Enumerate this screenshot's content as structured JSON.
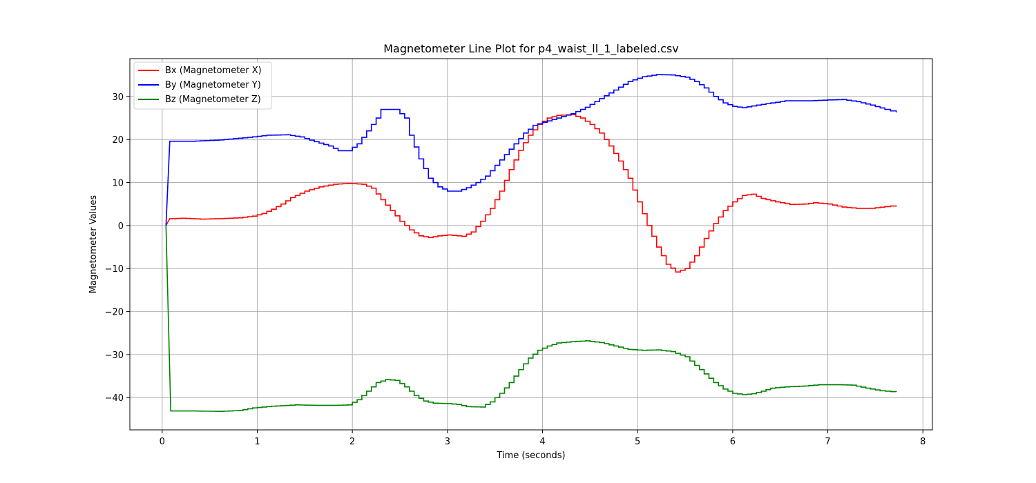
{
  "chart_data": {
    "type": "line",
    "title": "Magnetometer Line Plot for p4_waist_ll_1_labeled.csv",
    "xlabel": "Time (seconds)",
    "ylabel": "Magnetometer Values",
    "xlim": [
      -0.34,
      8.1
    ],
    "ylim": [
      -47.5,
      38.8
    ],
    "xticks": [
      0,
      1,
      2,
      3,
      4,
      5,
      6,
      7,
      8
    ],
    "xtick_labels": [
      "0",
      "1",
      "2",
      "3",
      "4",
      "5",
      "6",
      "7",
      "8"
    ],
    "yticks": [
      30,
      20,
      10,
      0,
      -10,
      -20,
      -30,
      -40
    ],
    "ytick_labels": [
      "30",
      "20",
      "10",
      "0",
      "−10",
      "−20",
      "−30",
      "−40"
    ],
    "grid": true,
    "legend_position": "top-left",
    "series": [
      {
        "name": "Bx (Magnetometer X)",
        "color": "#ff0000",
        "step": 0.05,
        "points": [
          [
            0.04,
            0
          ],
          [
            0.08,
            1.6
          ],
          [
            0.2,
            1.7
          ],
          [
            0.4,
            1.5
          ],
          [
            0.6,
            1.6
          ],
          [
            0.8,
            1.8
          ],
          [
            0.95,
            2.2
          ],
          [
            1.05,
            2.8
          ],
          [
            1.15,
            3.8
          ],
          [
            1.25,
            5
          ],
          [
            1.35,
            6.5
          ],
          [
            1.5,
            8
          ],
          [
            1.65,
            9
          ],
          [
            1.8,
            9.6
          ],
          [
            1.95,
            9.8
          ],
          [
            2.1,
            9.6
          ],
          [
            2.2,
            8.7
          ],
          [
            2.3,
            6
          ],
          [
            2.4,
            3.5
          ],
          [
            2.5,
            1
          ],
          [
            2.6,
            -1
          ],
          [
            2.7,
            -2.4
          ],
          [
            2.8,
            -2.8
          ],
          [
            2.9,
            -2.4
          ],
          [
            3.0,
            -2.2
          ],
          [
            3.15,
            -2.5
          ],
          [
            3.25,
            -1.5
          ],
          [
            3.35,
            1
          ],
          [
            3.45,
            4
          ],
          [
            3.55,
            8
          ],
          [
            3.65,
            13
          ],
          [
            3.75,
            17.5
          ],
          [
            3.85,
            21
          ],
          [
            3.95,
            23.5
          ],
          [
            4.05,
            25
          ],
          [
            4.15,
            25.6
          ],
          [
            4.3,
            25.8
          ],
          [
            4.4,
            25
          ],
          [
            4.5,
            23.5
          ],
          [
            4.6,
            21.5
          ],
          [
            4.7,
            18.5
          ],
          [
            4.8,
            15
          ],
          [
            4.9,
            11
          ],
          [
            5.0,
            5.5
          ],
          [
            5.1,
            0
          ],
          [
            5.2,
            -5
          ],
          [
            5.3,
            -9
          ],
          [
            5.4,
            -10.8
          ],
          [
            5.5,
            -10
          ],
          [
            5.6,
            -7
          ],
          [
            5.7,
            -3
          ],
          [
            5.8,
            0.5
          ],
          [
            5.9,
            3.5
          ],
          [
            6.0,
            5.5
          ],
          [
            6.1,
            7
          ],
          [
            6.2,
            7.3
          ],
          [
            6.3,
            6.3
          ],
          [
            6.45,
            5.5
          ],
          [
            6.6,
            4.9
          ],
          [
            6.75,
            5
          ],
          [
            6.85,
            5.3
          ],
          [
            7.0,
            5
          ],
          [
            7.15,
            4.3
          ],
          [
            7.3,
            4
          ],
          [
            7.45,
            4
          ],
          [
            7.6,
            4.4
          ],
          [
            7.72,
            4.7
          ]
        ]
      },
      {
        "name": "By (Magnetometer Y)",
        "color": "#0000ff",
        "step": 0.05,
        "points": [
          [
            0.04,
            0
          ],
          [
            0.08,
            19.6
          ],
          [
            0.3,
            19.6
          ],
          [
            0.6,
            19.9
          ],
          [
            0.9,
            20.5
          ],
          [
            1.1,
            21
          ],
          [
            1.3,
            21.1
          ],
          [
            1.45,
            20.6
          ],
          [
            1.6,
            19.5
          ],
          [
            1.75,
            18.5
          ],
          [
            1.85,
            17.4
          ],
          [
            1.95,
            17.4
          ],
          [
            2.05,
            19
          ],
          [
            2.15,
            22
          ],
          [
            2.25,
            25
          ],
          [
            2.3,
            27
          ],
          [
            2.45,
            27
          ],
          [
            2.55,
            25
          ],
          [
            2.6,
            21
          ],
          [
            2.7,
            15.5
          ],
          [
            2.8,
            11
          ],
          [
            2.9,
            9
          ],
          [
            3.0,
            8
          ],
          [
            3.1,
            8
          ],
          [
            3.2,
            8.8
          ],
          [
            3.3,
            10
          ],
          [
            3.4,
            11.5
          ],
          [
            3.5,
            14
          ],
          [
            3.6,
            16.5
          ],
          [
            3.7,
            19
          ],
          [
            3.8,
            21.5
          ],
          [
            3.9,
            23.3
          ],
          [
            4.0,
            24
          ],
          [
            4.15,
            25
          ],
          [
            4.3,
            26
          ],
          [
            4.45,
            27.5
          ],
          [
            4.6,
            29.5
          ],
          [
            4.75,
            31.5
          ],
          [
            4.9,
            33.5
          ],
          [
            5.05,
            34.6
          ],
          [
            5.2,
            35.1
          ],
          [
            5.35,
            35
          ],
          [
            5.5,
            34.5
          ],
          [
            5.6,
            33.5
          ],
          [
            5.7,
            32
          ],
          [
            5.8,
            30
          ],
          [
            5.9,
            28.5
          ],
          [
            6.0,
            27.7
          ],
          [
            6.1,
            27.4
          ],
          [
            6.25,
            28
          ],
          [
            6.4,
            28.5
          ],
          [
            6.55,
            29
          ],
          [
            6.8,
            29
          ],
          [
            7.0,
            29.2
          ],
          [
            7.15,
            29.3
          ],
          [
            7.3,
            28.8
          ],
          [
            7.45,
            28
          ],
          [
            7.6,
            27
          ],
          [
            7.72,
            26.3
          ]
        ]
      },
      {
        "name": "Bz (Magnetometer Z)",
        "color": "#008000",
        "step": 0.05,
        "points": [
          [
            0.04,
            0
          ],
          [
            0.09,
            -43.1
          ],
          [
            0.3,
            -43.1
          ],
          [
            0.6,
            -43.2
          ],
          [
            0.8,
            -43
          ],
          [
            0.95,
            -42.4
          ],
          [
            1.15,
            -42
          ],
          [
            1.4,
            -41.7
          ],
          [
            1.6,
            -41.8
          ],
          [
            1.8,
            -41.8
          ],
          [
            1.95,
            -41.7
          ],
          [
            2.05,
            -40.5
          ],
          [
            2.15,
            -38.5
          ],
          [
            2.25,
            -36.5
          ],
          [
            2.35,
            -35.8
          ],
          [
            2.45,
            -36
          ],
          [
            2.55,
            -37.5
          ],
          [
            2.65,
            -39.5
          ],
          [
            2.75,
            -40.8
          ],
          [
            2.85,
            -41.3
          ],
          [
            3.0,
            -41.4
          ],
          [
            3.1,
            -41.6
          ],
          [
            3.2,
            -42.1
          ],
          [
            3.35,
            -42.2
          ],
          [
            3.45,
            -41
          ],
          [
            3.55,
            -39
          ],
          [
            3.65,
            -36.5
          ],
          [
            3.75,
            -33.5
          ],
          [
            3.85,
            -30.8
          ],
          [
            3.95,
            -29
          ],
          [
            4.05,
            -28
          ],
          [
            4.15,
            -27.3
          ],
          [
            4.3,
            -27
          ],
          [
            4.45,
            -26.8
          ],
          [
            4.6,
            -27.2
          ],
          [
            4.75,
            -28
          ],
          [
            4.9,
            -28.8
          ],
          [
            5.05,
            -29
          ],
          [
            5.2,
            -28.9
          ],
          [
            5.35,
            -29.3
          ],
          [
            5.5,
            -30.5
          ],
          [
            5.6,
            -32.5
          ],
          [
            5.7,
            -34.5
          ],
          [
            5.8,
            -36.5
          ],
          [
            5.9,
            -38
          ],
          [
            6.0,
            -39
          ],
          [
            6.1,
            -39.3
          ],
          [
            6.2,
            -39.1
          ],
          [
            6.3,
            -38.5
          ],
          [
            6.4,
            -37.8
          ],
          [
            6.55,
            -37.5
          ],
          [
            6.75,
            -37.3
          ],
          [
            6.9,
            -37
          ],
          [
            7.1,
            -37
          ],
          [
            7.25,
            -37.1
          ],
          [
            7.4,
            -37.8
          ],
          [
            7.55,
            -38.4
          ],
          [
            7.72,
            -38.7
          ]
        ]
      }
    ]
  }
}
